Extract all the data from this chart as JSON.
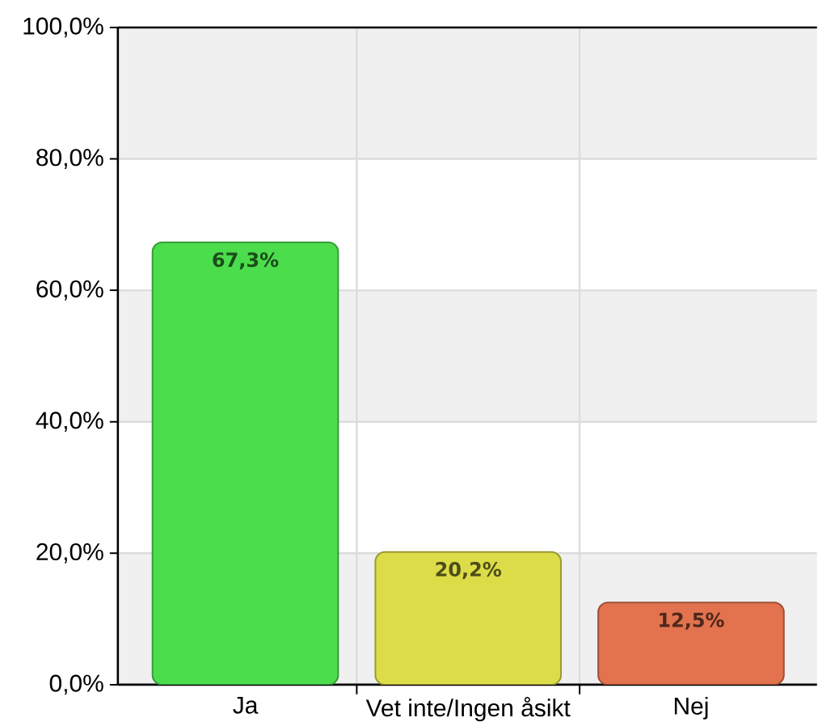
{
  "chart_data": {
    "type": "bar",
    "categories": [
      "Ja",
      "Vet inte/Ingen åsikt",
      "Nej"
    ],
    "values": [
      67.3,
      20.2,
      12.5
    ],
    "colors": [
      "#4cdd4c",
      "#dcdc48",
      "#e2734e"
    ],
    "value_labels": [
      "67,3%",
      "20,2%",
      "12,5%"
    ],
    "ylim": [
      0,
      100
    ],
    "yticks": [
      {
        "value": 0,
        "label": "0,0%"
      },
      {
        "value": 20,
        "label": "20,0%"
      },
      {
        "value": 40,
        "label": "40,0%"
      },
      {
        "value": 60,
        "label": "60,0%"
      },
      {
        "value": 80,
        "label": "80,0%"
      },
      {
        "value": 100,
        "label": "100,0%"
      }
    ],
    "grid": true
  }
}
